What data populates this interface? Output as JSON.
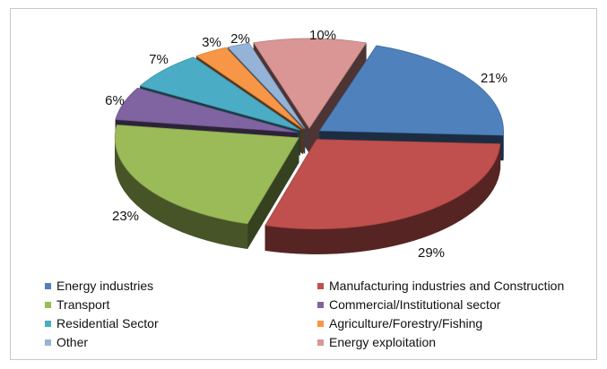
{
  "chart_data": {
    "type": "pie",
    "style": "exploded-3d",
    "legend_position": "bottom",
    "slices": [
      {
        "label": "Energy industries",
        "value": 21,
        "value_label": "21%",
        "color": "#4f81bd"
      },
      {
        "label": "Manufacturing industries and Construction",
        "value": 29,
        "value_label": "29%",
        "color": "#c0504d"
      },
      {
        "label": "Transport",
        "value": 23,
        "value_label": "23%",
        "color": "#9bbb59"
      },
      {
        "label": "Commercial/Institutional sector",
        "value": 6,
        "value_label": "6%",
        "color": "#8064a2"
      },
      {
        "label": "Residential Sector",
        "value": 7,
        "value_label": "7%",
        "color": "#4bacc6"
      },
      {
        "label": "Agriculture/Forestry/Fishing",
        "value": 3,
        "value_label": "3%",
        "color": "#f79646"
      },
      {
        "label": "Other",
        "value": 2,
        "value_label": "2%",
        "color": "#95b3d7"
      },
      {
        "label": "Energy exploitation",
        "value": 10,
        "value_label": "10%",
        "color": "#d99694"
      }
    ]
  }
}
